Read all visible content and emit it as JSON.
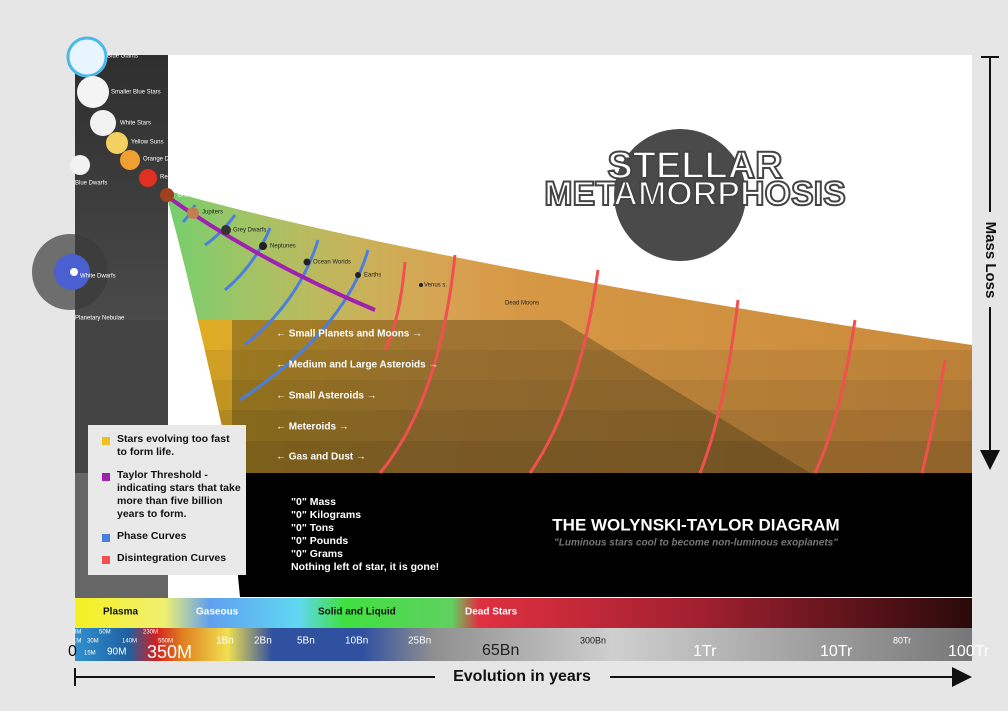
{
  "title": {
    "line1": "STELLAR",
    "line2": "METAMORPHOSIS"
  },
  "stages": [
    "Blue Giants",
    "Smaller Blue Stars",
    "White Stars",
    "Yellow Suns",
    "Orange Dwarfs",
    "Red Dwarfs",
    "Brown Dwarfs",
    "Jupiters",
    "Grey Dwarfs",
    "Neptunes",
    "Ocean Worlds",
    "Earths",
    "Venus s.",
    "Dead Moons",
    "Blue Dwarfs",
    "White Dwarfs",
    "Planetary Nebulae"
  ],
  "bands": [
    "← Small Planets and Moons →",
    "← Medium and Large Asteroids →",
    "← Small Asteroids →",
    "← Meteroids →",
    "← Gas and Dust →"
  ],
  "legend": [
    "Stars evolving too fast to form life.",
    "Taylor Threshold - indicating stars that take more than five billion years to form.",
    "Phase Curves",
    "Disintegration Curves"
  ],
  "zero_list": [
    "\"0\" Mass",
    "\"0\" Kilograms",
    "\"0\" Tons",
    "\"0\" Pounds",
    "\"0\" Grams",
    "Nothing left of star, it is gone!"
  ],
  "diagram_title": "THE WOLYNSKI-TAYLOR DIAGRAM",
  "diagram_subtitle": "\"Luminous stars cool to become non-luminous exoplanets\"",
  "phases": [
    "Plasma",
    "Gaseous",
    "Solid and Liquid",
    "Dead Stars"
  ],
  "timeline": [
    "3M",
    "1M",
    "15M",
    "30M",
    "50M",
    "90M",
    "140M",
    "230M",
    "350M",
    "550M",
    "1Bn",
    "2Bn",
    "5Bn",
    "10Bn",
    "25Bn",
    "65Bn",
    "300Bn",
    "1Tr",
    "10Tr",
    "80Tr",
    "100Tr",
    "0"
  ],
  "axis": {
    "mass_loss": "Mass Loss",
    "evolution": "Evolution in years"
  }
}
